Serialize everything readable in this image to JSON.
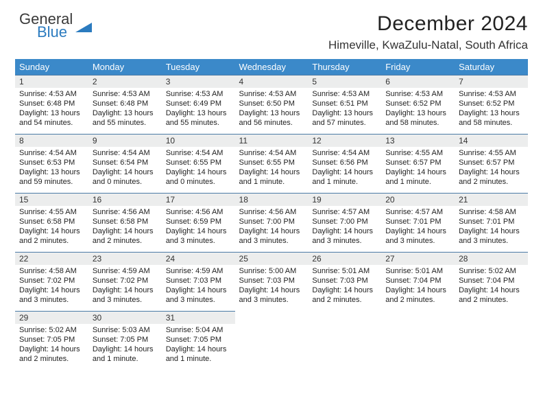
{
  "logo": {
    "line1": "General",
    "line2": "Blue"
  },
  "header": {
    "month_title": "December 2024",
    "location": "Himeville, KwaZulu-Natal, South Africa"
  },
  "colors": {
    "header_bg": "#3b89c9",
    "header_fg": "#ffffff",
    "daynum_bg": "#eceded",
    "day_border": "#4a7aa5",
    "logo_blue": "#2b7bbf"
  },
  "weekdays": [
    "Sunday",
    "Monday",
    "Tuesday",
    "Wednesday",
    "Thursday",
    "Friday",
    "Saturday"
  ],
  "weeks": [
    [
      {
        "n": "1",
        "sr": "4:53 AM",
        "ss": "6:48 PM",
        "dl": "Daylight: 13 hours and 54 minutes."
      },
      {
        "n": "2",
        "sr": "4:53 AM",
        "ss": "6:48 PM",
        "dl": "Daylight: 13 hours and 55 minutes."
      },
      {
        "n": "3",
        "sr": "4:53 AM",
        "ss": "6:49 PM",
        "dl": "Daylight: 13 hours and 55 minutes."
      },
      {
        "n": "4",
        "sr": "4:53 AM",
        "ss": "6:50 PM",
        "dl": "Daylight: 13 hours and 56 minutes."
      },
      {
        "n": "5",
        "sr": "4:53 AM",
        "ss": "6:51 PM",
        "dl": "Daylight: 13 hours and 57 minutes."
      },
      {
        "n": "6",
        "sr": "4:53 AM",
        "ss": "6:52 PM",
        "dl": "Daylight: 13 hours and 58 minutes."
      },
      {
        "n": "7",
        "sr": "4:53 AM",
        "ss": "6:52 PM",
        "dl": "Daylight: 13 hours and 58 minutes."
      }
    ],
    [
      {
        "n": "8",
        "sr": "4:54 AM",
        "ss": "6:53 PM",
        "dl": "Daylight: 13 hours and 59 minutes."
      },
      {
        "n": "9",
        "sr": "4:54 AM",
        "ss": "6:54 PM",
        "dl": "Daylight: 14 hours and 0 minutes."
      },
      {
        "n": "10",
        "sr": "4:54 AM",
        "ss": "6:55 PM",
        "dl": "Daylight: 14 hours and 0 minutes."
      },
      {
        "n": "11",
        "sr": "4:54 AM",
        "ss": "6:55 PM",
        "dl": "Daylight: 14 hours and 1 minute."
      },
      {
        "n": "12",
        "sr": "4:54 AM",
        "ss": "6:56 PM",
        "dl": "Daylight: 14 hours and 1 minute."
      },
      {
        "n": "13",
        "sr": "4:55 AM",
        "ss": "6:57 PM",
        "dl": "Daylight: 14 hours and 1 minute."
      },
      {
        "n": "14",
        "sr": "4:55 AM",
        "ss": "6:57 PM",
        "dl": "Daylight: 14 hours and 2 minutes."
      }
    ],
    [
      {
        "n": "15",
        "sr": "4:55 AM",
        "ss": "6:58 PM",
        "dl": "Daylight: 14 hours and 2 minutes."
      },
      {
        "n": "16",
        "sr": "4:56 AM",
        "ss": "6:58 PM",
        "dl": "Daylight: 14 hours and 2 minutes."
      },
      {
        "n": "17",
        "sr": "4:56 AM",
        "ss": "6:59 PM",
        "dl": "Daylight: 14 hours and 3 minutes."
      },
      {
        "n": "18",
        "sr": "4:56 AM",
        "ss": "7:00 PM",
        "dl": "Daylight: 14 hours and 3 minutes."
      },
      {
        "n": "19",
        "sr": "4:57 AM",
        "ss": "7:00 PM",
        "dl": "Daylight: 14 hours and 3 minutes."
      },
      {
        "n": "20",
        "sr": "4:57 AM",
        "ss": "7:01 PM",
        "dl": "Daylight: 14 hours and 3 minutes."
      },
      {
        "n": "21",
        "sr": "4:58 AM",
        "ss": "7:01 PM",
        "dl": "Daylight: 14 hours and 3 minutes."
      }
    ],
    [
      {
        "n": "22",
        "sr": "4:58 AM",
        "ss": "7:02 PM",
        "dl": "Daylight: 14 hours and 3 minutes."
      },
      {
        "n": "23",
        "sr": "4:59 AM",
        "ss": "7:02 PM",
        "dl": "Daylight: 14 hours and 3 minutes."
      },
      {
        "n": "24",
        "sr": "4:59 AM",
        "ss": "7:03 PM",
        "dl": "Daylight: 14 hours and 3 minutes."
      },
      {
        "n": "25",
        "sr": "5:00 AM",
        "ss": "7:03 PM",
        "dl": "Daylight: 14 hours and 3 minutes."
      },
      {
        "n": "26",
        "sr": "5:01 AM",
        "ss": "7:03 PM",
        "dl": "Daylight: 14 hours and 2 minutes."
      },
      {
        "n": "27",
        "sr": "5:01 AM",
        "ss": "7:04 PM",
        "dl": "Daylight: 14 hours and 2 minutes."
      },
      {
        "n": "28",
        "sr": "5:02 AM",
        "ss": "7:04 PM",
        "dl": "Daylight: 14 hours and 2 minutes."
      }
    ],
    [
      {
        "n": "29",
        "sr": "5:02 AM",
        "ss": "7:05 PM",
        "dl": "Daylight: 14 hours and 2 minutes."
      },
      {
        "n": "30",
        "sr": "5:03 AM",
        "ss": "7:05 PM",
        "dl": "Daylight: 14 hours and 1 minute."
      },
      {
        "n": "31",
        "sr": "5:04 AM",
        "ss": "7:05 PM",
        "dl": "Daylight: 14 hours and 1 minute."
      },
      null,
      null,
      null,
      null
    ]
  ],
  "labels": {
    "sunrise_prefix": "Sunrise: ",
    "sunset_prefix": "Sunset: "
  }
}
